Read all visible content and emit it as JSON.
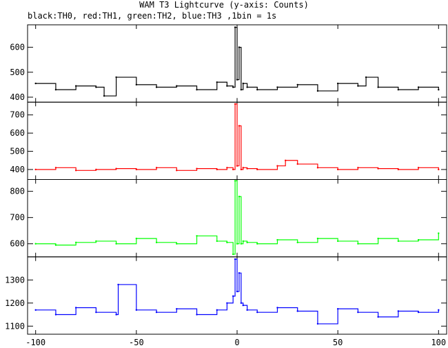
{
  "chart_data": {
    "type": "line",
    "title": "WAM T3 Lightcurve (y-axis: Counts)",
    "subtitle": "black:TH0, red:TH1, green:TH2, blue:TH3 ,1bin = 1s",
    "xlim": [
      -104,
      104
    ],
    "x_ticks": [
      -100,
      -50,
      0,
      50,
      100
    ],
    "grid": false,
    "panels": [
      {
        "name": "TH0",
        "color": "#000000",
        "ylim": [
          380,
          690
        ],
        "y_ticks": [
          400,
          500,
          600
        ],
        "x": [
          -100,
          -90,
          -80,
          -70,
          -66,
          -60,
          -50,
          -40,
          -30,
          -20,
          -10,
          -5,
          -2,
          -1,
          0,
          1,
          2,
          3,
          5,
          10,
          20,
          30,
          40,
          50,
          60,
          64,
          70,
          80,
          90,
          100
        ],
        "values": [
          455,
          430,
          445,
          440,
          405,
          480,
          450,
          440,
          445,
          430,
          460,
          445,
          440,
          680,
          470,
          600,
          430,
          455,
          440,
          430,
          440,
          450,
          425,
          455,
          445,
          480,
          440,
          430,
          440,
          430
        ]
      },
      {
        "name": "TH1",
        "color": "#ff0000",
        "ylim": [
          345,
          770
        ],
        "y_ticks": [
          400,
          500,
          600,
          700
        ],
        "x": [
          -100,
          -90,
          -80,
          -70,
          -60,
          -50,
          -40,
          -30,
          -20,
          -10,
          -5,
          -2,
          -1,
          0,
          1,
          2,
          3,
          5,
          10,
          20,
          24,
          30,
          40,
          50,
          60,
          70,
          80,
          90,
          100
        ],
        "values": [
          400,
          410,
          395,
          400,
          405,
          400,
          410,
          395,
          405,
          400,
          410,
          400,
          760,
          420,
          640,
          400,
          410,
          405,
          400,
          420,
          450,
          430,
          410,
          400,
          410,
          405,
          400,
          410,
          400
        ]
      },
      {
        "name": "TH2",
        "color": "#00ff00",
        "ylim": [
          550,
          845
        ],
        "y_ticks": [
          600,
          700,
          800
        ],
        "x": [
          -100,
          -90,
          -80,
          -70,
          -60,
          -50,
          -40,
          -30,
          -20,
          -10,
          -5,
          -2,
          -1,
          0,
          1,
          2,
          3,
          5,
          10,
          20,
          30,
          40,
          50,
          60,
          70,
          80,
          90,
          100
        ],
        "values": [
          600,
          595,
          605,
          610,
          600,
          620,
          605,
          600,
          630,
          610,
          605,
          560,
          840,
          600,
          780,
          600,
          610,
          605,
          600,
          615,
          605,
          620,
          610,
          600,
          620,
          610,
          615,
          640
        ]
      },
      {
        "name": "TH3",
        "color": "#0000ff",
        "ylim": [
          1065,
          1400
        ],
        "y_ticks": [
          1100,
          1200,
          1300
        ],
        "x": [
          -100,
          -90,
          -80,
          -70,
          -60,
          -59,
          -50,
          -40,
          -30,
          -20,
          -10,
          -5,
          -2,
          -1,
          0,
          1,
          2,
          3,
          5,
          10,
          20,
          30,
          40,
          50,
          60,
          70,
          80,
          90,
          100
        ],
        "values": [
          1170,
          1150,
          1180,
          1160,
          1150,
          1280,
          1170,
          1160,
          1175,
          1150,
          1170,
          1200,
          1230,
          1390,
          1250,
          1330,
          1200,
          1190,
          1170,
          1160,
          1180,
          1165,
          1110,
          1175,
          1160,
          1140,
          1165,
          1160,
          1170
        ]
      }
    ]
  }
}
